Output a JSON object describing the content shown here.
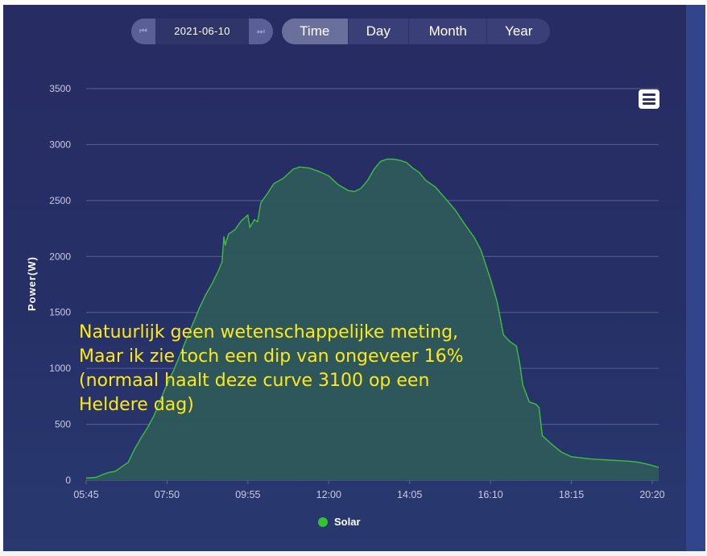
{
  "date_nav": {
    "date": "2021-06-10",
    "prev_icon": "skip-back-icon",
    "next_icon": "skip-forward-icon"
  },
  "tabs": [
    {
      "label": "Time",
      "active": true
    },
    {
      "label": "Day",
      "active": false
    },
    {
      "label": "Month",
      "active": false
    },
    {
      "label": "Year",
      "active": false
    }
  ],
  "menu_icon": "hamburger-menu-icon",
  "annotation": [
    "Natuurlijk geen wetenschappelijke meting,",
    "Maar ik zie toch een dip van ongeveer 16%",
    "(normaal haalt deze curve 3100 op een",
    "Heldere dag)"
  ],
  "colors": {
    "line": "#3ec03e",
    "fill": "#2d5a5a",
    "annotation": "#ffe81a",
    "background": "#262d64"
  },
  "chart_data": {
    "type": "area",
    "ylabel": "Power(W)",
    "xlabel": "",
    "title": "",
    "ylim": [
      0,
      3500
    ],
    "yticks": [
      0,
      500,
      1000,
      1500,
      2000,
      2500,
      3000,
      3500
    ],
    "xticks": [
      "05:45",
      "07:50",
      "09:55",
      "12:00",
      "14:05",
      "16:10",
      "18:15",
      "20:20"
    ],
    "xrange": [
      "05:45",
      "20:30"
    ],
    "grid": true,
    "legend": "bottom-center",
    "series": [
      {
        "name": "Solar",
        "color": "#3ec03e",
        "points": [
          [
            "05:45",
            20
          ],
          [
            "06:00",
            25
          ],
          [
            "06:10",
            50
          ],
          [
            "06:20",
            70
          ],
          [
            "06:30",
            80
          ],
          [
            "06:40",
            120
          ],
          [
            "06:50",
            160
          ],
          [
            "07:00",
            280
          ],
          [
            "07:10",
            380
          ],
          [
            "07:20",
            470
          ],
          [
            "07:30",
            580
          ],
          [
            "07:40",
            720
          ],
          [
            "07:50",
            860
          ],
          [
            "08:00",
            980
          ],
          [
            "08:10",
            1120
          ],
          [
            "08:20",
            1260
          ],
          [
            "08:30",
            1400
          ],
          [
            "08:40",
            1540
          ],
          [
            "08:50",
            1660
          ],
          [
            "09:00",
            1760
          ],
          [
            "09:10",
            1880
          ],
          [
            "09:15",
            1950
          ],
          [
            "09:18",
            2180
          ],
          [
            "09:20",
            2100
          ],
          [
            "09:25",
            2200
          ],
          [
            "09:35",
            2240
          ],
          [
            "09:45",
            2320
          ],
          [
            "09:55",
            2370
          ],
          [
            "09:58",
            2260
          ],
          [
            "10:05",
            2330
          ],
          [
            "10:10",
            2310
          ],
          [
            "10:15",
            2480
          ],
          [
            "10:25",
            2560
          ],
          [
            "10:35",
            2650
          ],
          [
            "10:50",
            2700
          ],
          [
            "11:05",
            2780
          ],
          [
            "11:15",
            2800
          ],
          [
            "11:30",
            2790
          ],
          [
            "11:45",
            2760
          ],
          [
            "12:00",
            2720
          ],
          [
            "12:15",
            2640
          ],
          [
            "12:30",
            2590
          ],
          [
            "12:40",
            2580
          ],
          [
            "12:50",
            2610
          ],
          [
            "13:00",
            2680
          ],
          [
            "13:10",
            2780
          ],
          [
            "13:20",
            2850
          ],
          [
            "13:30",
            2870
          ],
          [
            "13:40",
            2870
          ],
          [
            "13:50",
            2860
          ],
          [
            "14:00",
            2840
          ],
          [
            "14:10",
            2790
          ],
          [
            "14:20",
            2750
          ],
          [
            "14:30",
            2680
          ],
          [
            "14:45",
            2620
          ],
          [
            "15:00",
            2520
          ],
          [
            "15:15",
            2420
          ],
          [
            "15:30",
            2290
          ],
          [
            "15:45",
            2170
          ],
          [
            "15:55",
            2060
          ],
          [
            "16:10",
            1800
          ],
          [
            "16:20",
            1600
          ],
          [
            "16:30",
            1300
          ],
          [
            "16:40",
            1240
          ],
          [
            "16:50",
            1200
          ],
          [
            "16:55",
            1050
          ],
          [
            "17:00",
            850
          ],
          [
            "17:10",
            700
          ],
          [
            "17:20",
            680
          ],
          [
            "17:25",
            650
          ],
          [
            "17:30",
            400
          ],
          [
            "17:45",
            320
          ],
          [
            "18:00",
            250
          ],
          [
            "18:15",
            210
          ],
          [
            "18:30",
            200
          ],
          [
            "18:45",
            190
          ],
          [
            "19:00",
            185
          ],
          [
            "19:15",
            180
          ],
          [
            "19:30",
            175
          ],
          [
            "19:45",
            170
          ],
          [
            "20:00",
            160
          ],
          [
            "20:15",
            140
          ],
          [
            "20:30",
            115
          ]
        ]
      }
    ]
  }
}
